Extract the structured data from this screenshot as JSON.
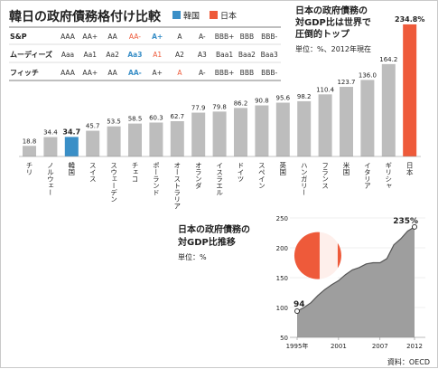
{
  "title": "韓日の政府債務格付け比較",
  "legend": [
    {
      "label": "韓国",
      "color": "#3a8fc7"
    },
    {
      "label": "日本",
      "color": "#ee5a3a"
    }
  ],
  "ratings": {
    "rows": [
      {
        "agency": "S&P",
        "scale": [
          "AAA",
          "AA+",
          "AA",
          "AA-",
          "A+",
          "A",
          "A-",
          "BBB+",
          "BBB",
          "BBB-"
        ],
        "korea_index": 4,
        "japan_index": 3
      },
      {
        "agency": "ムーディーズ",
        "scale": [
          "Aaa",
          "Aa1",
          "Aa2",
          "Aa3",
          "A1",
          "A2",
          "A3",
          "Baa1",
          "Baa2",
          "Baa3"
        ],
        "korea_index": 3,
        "japan_index": 4
      },
      {
        "agency": "フィッチ",
        "scale": [
          "AAA",
          "AA+",
          "AA",
          "AA-",
          "A+",
          "A",
          "A-",
          "BBB+",
          "BBB",
          "BBB-"
        ],
        "korea_index": 3,
        "japan_index": 5
      }
    ]
  },
  "annotation": {
    "line1": "日本の政府債務の",
    "line2": "対GDP比は世界で",
    "line3": "圧倒的トップ",
    "unit": "単位：%、2012年現在"
  },
  "chart_data": [
    {
      "type": "bar",
      "categories": [
        "チリ",
        "ノルウェー",
        "韓国",
        "スイス",
        "スウェーデン",
        "チェコ",
        "ポーランド",
        "オーストラリア",
        "オランダ",
        "イスラエル",
        "ドイツ",
        "スペイン",
        "英国",
        "ハンガリー",
        "フランス",
        "米国",
        "イタリア",
        "ギリシャ",
        "日本"
      ],
      "values": [
        18.8,
        34.4,
        34.7,
        45.7,
        53.5,
        58.5,
        60.3,
        62.7,
        77.9,
        79.8,
        86.2,
        90.8,
        95.6,
        98.2,
        110.4,
        123.7,
        136.0,
        164.2,
        234.8
      ],
      "value_labels": [
        "18.8",
        "34.4",
        "34.7",
        "45.7",
        "53.5",
        "58.5",
        "60.3",
        "62.7",
        "77.9",
        "79.8",
        "86.2",
        "90.8",
        "95.6",
        "98.2",
        "110.4",
        "123.7",
        "136.0",
        "164.2",
        "234.8%"
      ],
      "highlight": {
        "韓国": "#3a8fc7",
        "日本": "#ee5a3a"
      },
      "bar_color": "#bdbdbd",
      "ylim": [
        0,
        240
      ]
    },
    {
      "type": "area",
      "title_line1": "日本の政府債務の",
      "title_line2": "対GDP比推移",
      "unit": "単位：%",
      "x": [
        1995,
        1996,
        1997,
        1998,
        1999,
        2000,
        2001,
        2002,
        2003,
        2004,
        2005,
        2006,
        2007,
        2008,
        2009,
        2010,
        2011,
        2012
      ],
      "y": [
        94,
        100,
        108,
        120,
        130,
        138,
        145,
        155,
        163,
        167,
        173,
        175,
        175,
        182,
        205,
        215,
        228,
        235
      ],
      "x_tick_labels": [
        "1995年",
        "2001",
        "2007",
        "2012"
      ],
      "x_ticks": [
        1995,
        2001,
        2007,
        2012
      ],
      "y_ticks": [
        50,
        100,
        150,
        200,
        250
      ],
      "ylim": [
        50,
        250
      ],
      "start_label": "94",
      "end_label": "235%",
      "fill_color": "#9e9e9e",
      "sun_color": "#ee5a3a"
    }
  ],
  "source": "資料：OECD"
}
